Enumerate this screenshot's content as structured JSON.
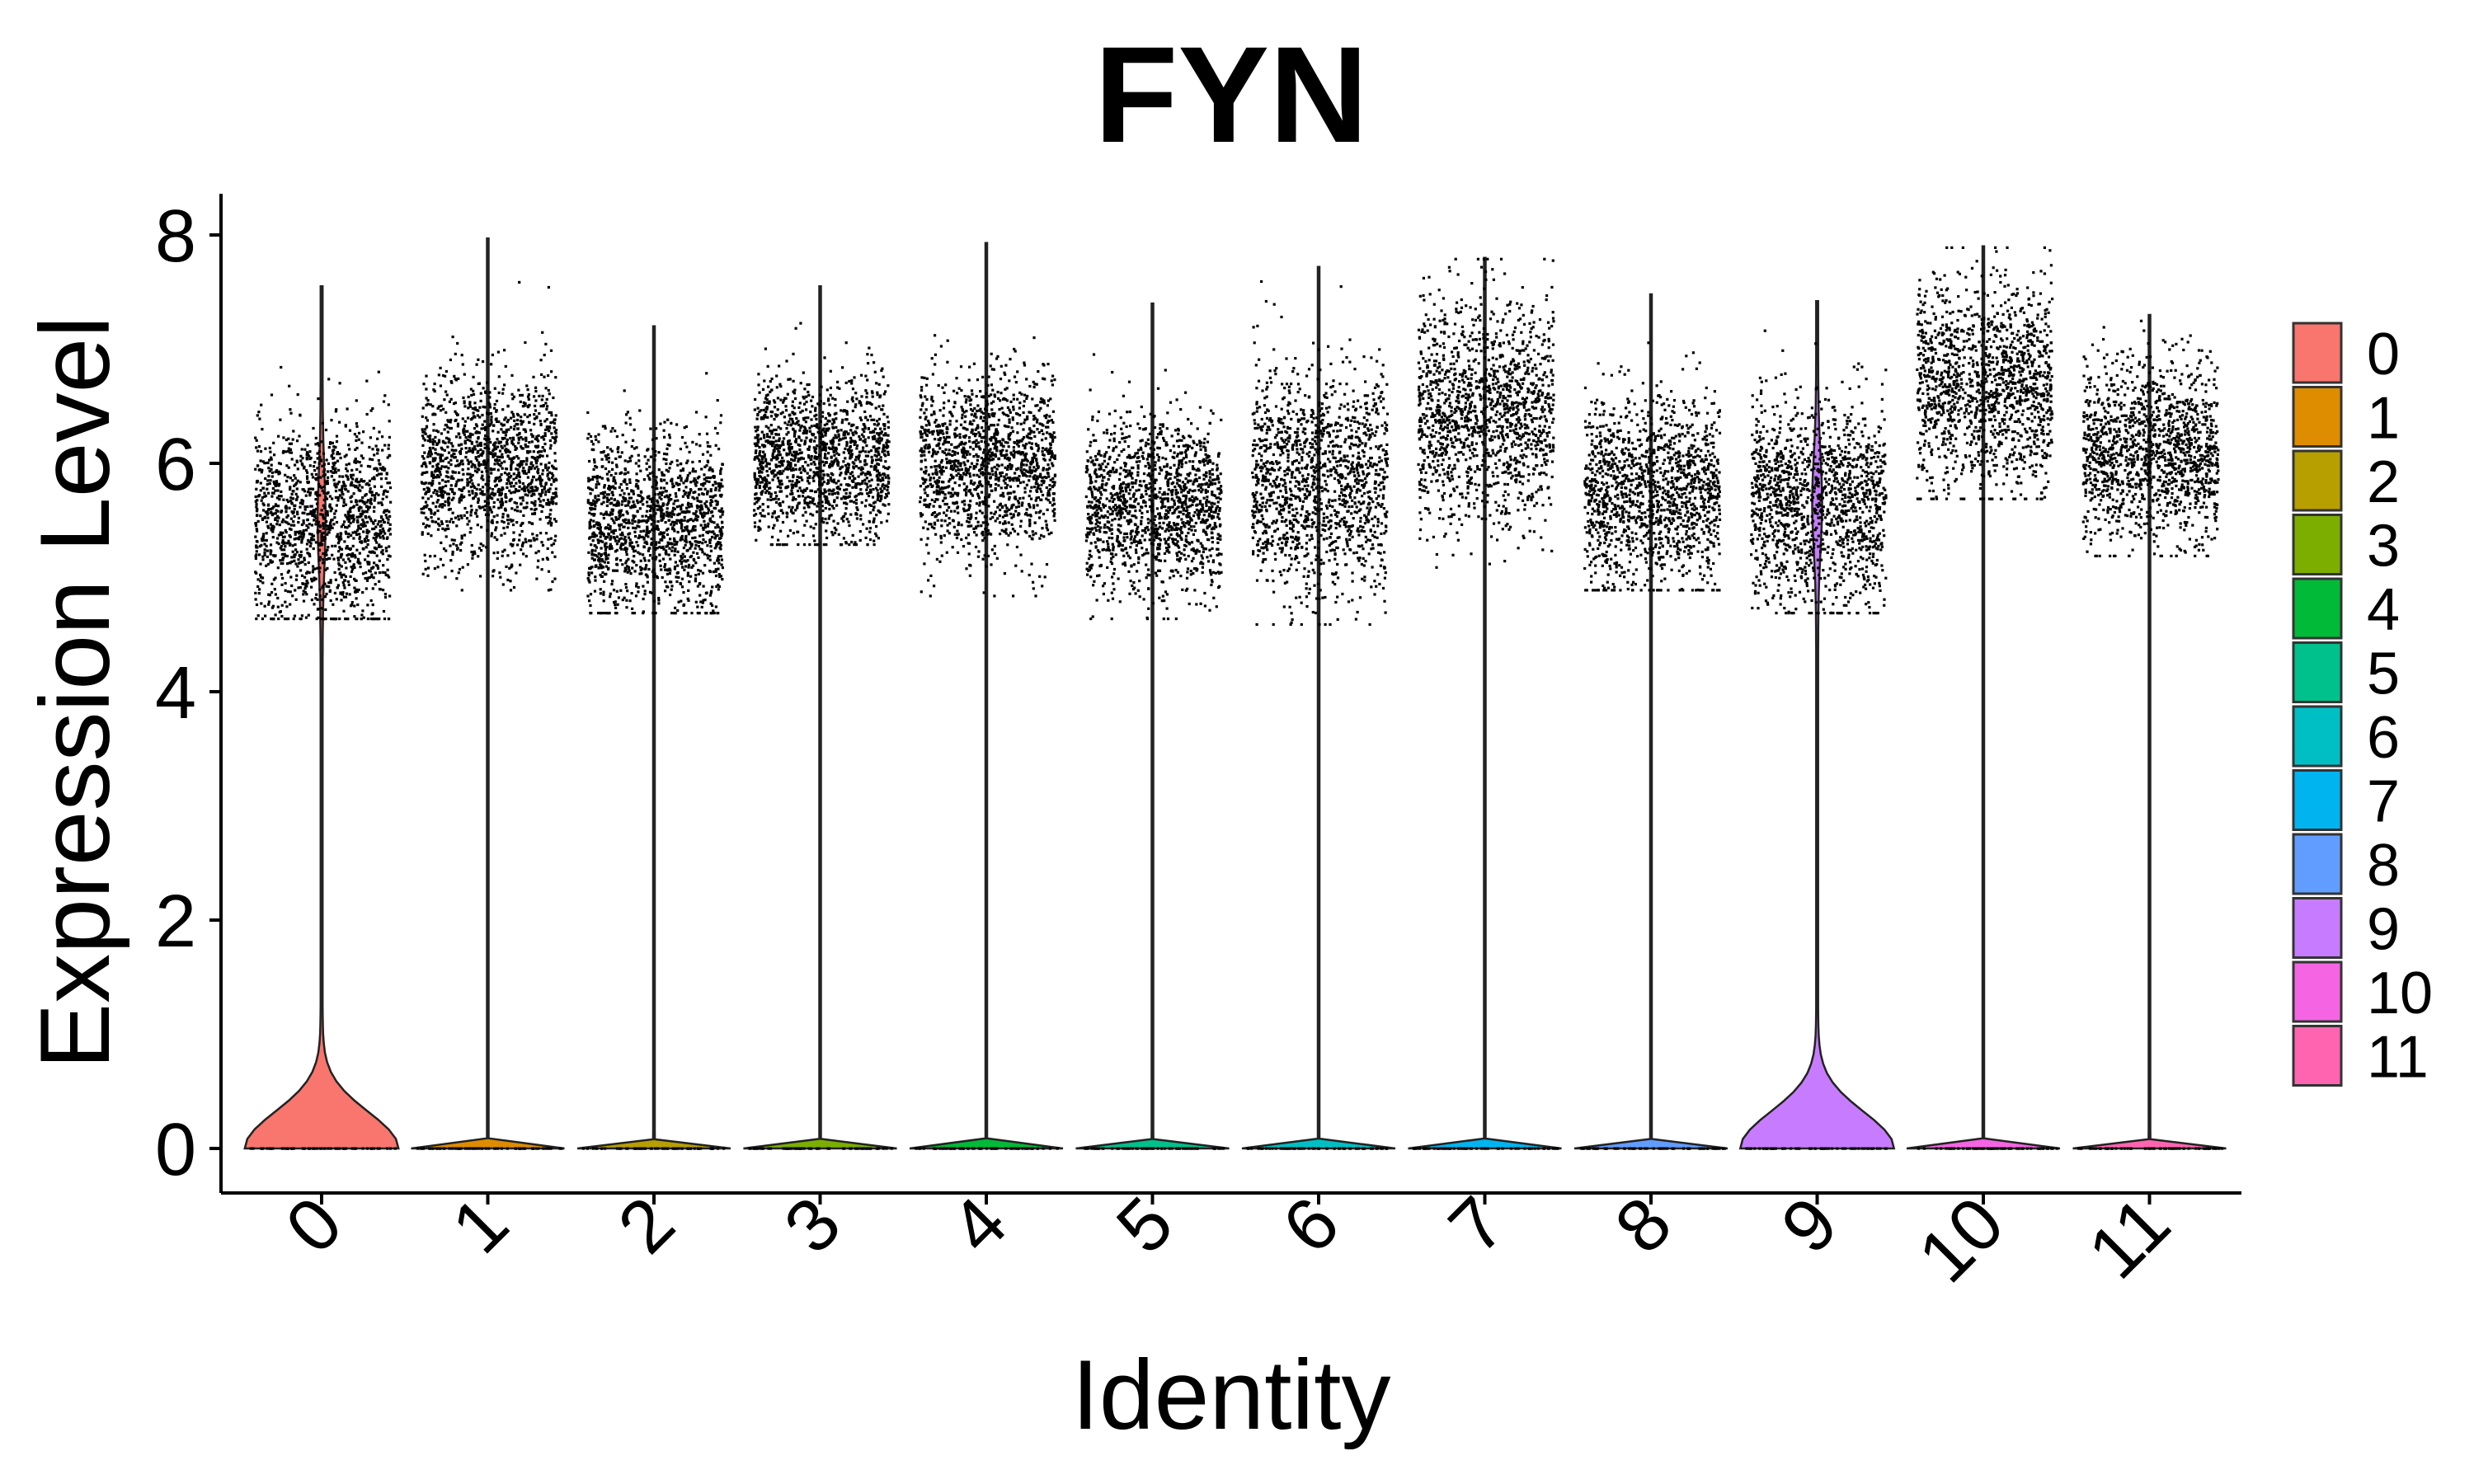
{
  "chart_data": {
    "type": "violin",
    "title": "FYN",
    "xlabel": "Identity",
    "ylabel": "Expression Level",
    "ylim": [
      -0.5,
      8.35
    ],
    "yticks": [
      0,
      2,
      4,
      6,
      8
    ],
    "categories": [
      "0",
      "1",
      "2",
      "3",
      "4",
      "5",
      "6",
      "7",
      "8",
      "9",
      "10",
      "11"
    ],
    "legend": {
      "position": "right",
      "entries": [
        "0",
        "1",
        "2",
        "3",
        "4",
        "5",
        "6",
        "7",
        "8",
        "9",
        "10",
        "11"
      ]
    },
    "colors": [
      "#F8766D",
      "#DE8C00",
      "#B79F00",
      "#7CAE00",
      "#00BA38",
      "#00C08B",
      "#00BFC4",
      "#00B4F0",
      "#619CFF",
      "#C77CFF",
      "#F564E3",
      "#FF64B0"
    ],
    "grid": false,
    "series": [
      {
        "category": "0",
        "max": 7.55,
        "jitter_center": 5.5,
        "jitter_spread": 0.45,
        "jitter_range": [
          4.65,
          7.3
        ],
        "nonzero_fraction": 0.15
      },
      {
        "category": "1",
        "max": 7.97,
        "jitter_center": 5.95,
        "jitter_spread": 0.42,
        "jitter_range": [
          4.9,
          7.7
        ],
        "nonzero_fraction": 0.0
      },
      {
        "category": "2",
        "max": 7.2,
        "jitter_center": 5.5,
        "jitter_spread": 0.4,
        "jitter_range": [
          4.7,
          7.0
        ],
        "nonzero_fraction": 0.0
      },
      {
        "category": "3",
        "max": 7.55,
        "jitter_center": 6.05,
        "jitter_spread": 0.35,
        "jitter_range": [
          5.3,
          7.5
        ],
        "nonzero_fraction": 0.0
      },
      {
        "category": "4",
        "max": 7.93,
        "jitter_center": 6.0,
        "jitter_spread": 0.4,
        "jitter_range": [
          4.85,
          7.9
        ],
        "nonzero_fraction": 0.0
      },
      {
        "category": "5",
        "max": 7.4,
        "jitter_center": 5.65,
        "jitter_spread": 0.38,
        "jitter_range": [
          4.65,
          7.2
        ],
        "nonzero_fraction": 0.0
      },
      {
        "category": "6",
        "max": 7.72,
        "jitter_center": 5.85,
        "jitter_spread": 0.5,
        "jitter_range": [
          4.6,
          7.7
        ],
        "nonzero_fraction": 0.0
      },
      {
        "category": "7",
        "max": 7.8,
        "jitter_center": 6.45,
        "jitter_spread": 0.5,
        "jitter_range": [
          5.1,
          7.8
        ],
        "nonzero_fraction": 0.0
      },
      {
        "category": "8",
        "max": 7.48,
        "jitter_center": 5.75,
        "jitter_spread": 0.42,
        "jitter_range": [
          4.9,
          7.45
        ],
        "nonzero_fraction": 0.0
      },
      {
        "category": "9",
        "max": 7.42,
        "jitter_center": 5.65,
        "jitter_spread": 0.45,
        "jitter_range": [
          4.7,
          7.4
        ],
        "nonzero_fraction": 0.2
      },
      {
        "category": "10",
        "max": 7.9,
        "jitter_center": 6.7,
        "jitter_spread": 0.45,
        "jitter_range": [
          5.7,
          7.9
        ],
        "nonzero_fraction": 0.0
      },
      {
        "category": "11",
        "max": 7.3,
        "jitter_center": 6.1,
        "jitter_spread": 0.4,
        "jitter_range": [
          5.2,
          7.3
        ],
        "nonzero_fraction": 0.0
      }
    ]
  }
}
